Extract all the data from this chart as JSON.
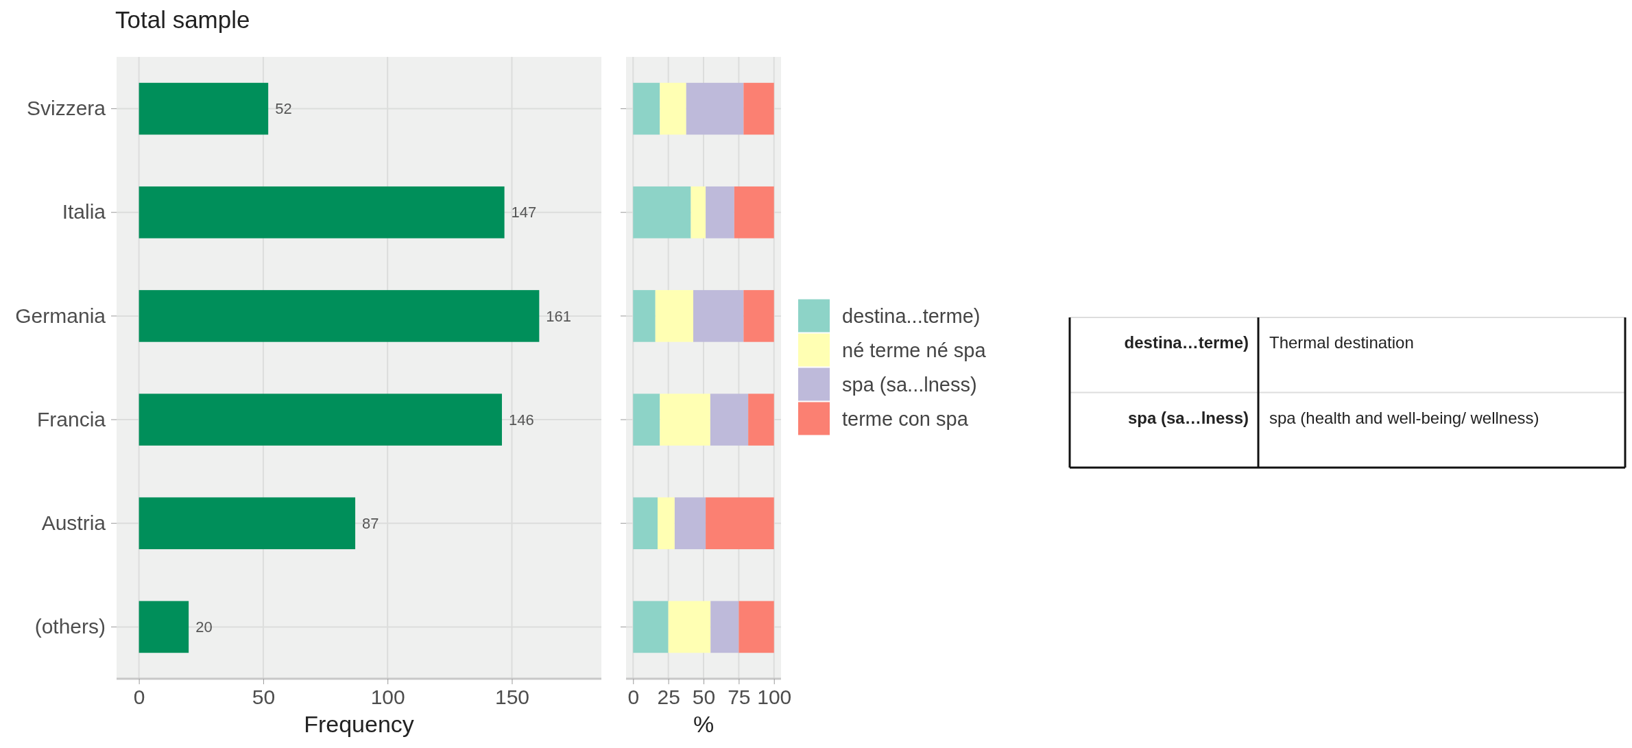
{
  "chart_data": [
    {
      "type": "bar",
      "orientation": "horizontal",
      "title": "Total sample",
      "xlabel": "Frequency",
      "categories": [
        "Svizzera",
        "Italia",
        "Germania",
        "Francia",
        "Austria",
        "(others)"
      ],
      "values": [
        52,
        147,
        161,
        146,
        87,
        20
      ],
      "color": "#008f5a",
      "data_labels": true,
      "xlim": [
        -9,
        186
      ],
      "xticks": [
        0,
        50,
        100,
        150
      ],
      "grid": true
    },
    {
      "type": "bar",
      "orientation": "horizontal",
      "stacked": true,
      "xlabel": "%",
      "xlim": [
        -5,
        105
      ],
      "xticks": [
        0,
        25,
        50,
        75,
        100
      ],
      "grid": true,
      "tick_labels": "x",
      "legend": "right",
      "series": [
        {
          "name": "destina...terme)",
          "color": "#8dd3c7",
          "values": [
            19,
            41,
            15.8,
            19,
            17.4,
            25
          ]
        },
        {
          "name": "né terme né spa",
          "color": "#ffffb3",
          "values": [
            18.7,
            10.5,
            26.9,
            35.8,
            12.1,
            30
          ]
        },
        {
          "name": "spa (sa...lness)",
          "color": "#bebada",
          "values": [
            40.7,
            20.3,
            35.7,
            26.9,
            22,
            20
          ]
        },
        {
          "name": "terme con spa",
          "color": "#fb8072",
          "values": [
            21.6,
            28.2,
            21.6,
            18.3,
            48.5,
            25
          ]
        }
      ]
    },
    {
      "type": "other",
      "annotations": [
        "destina…terme)",
        "Thermal destination",
        "spa (sa…lness)",
        "spa (health and well-being/ wellness)"
      ]
    }
  ]
}
